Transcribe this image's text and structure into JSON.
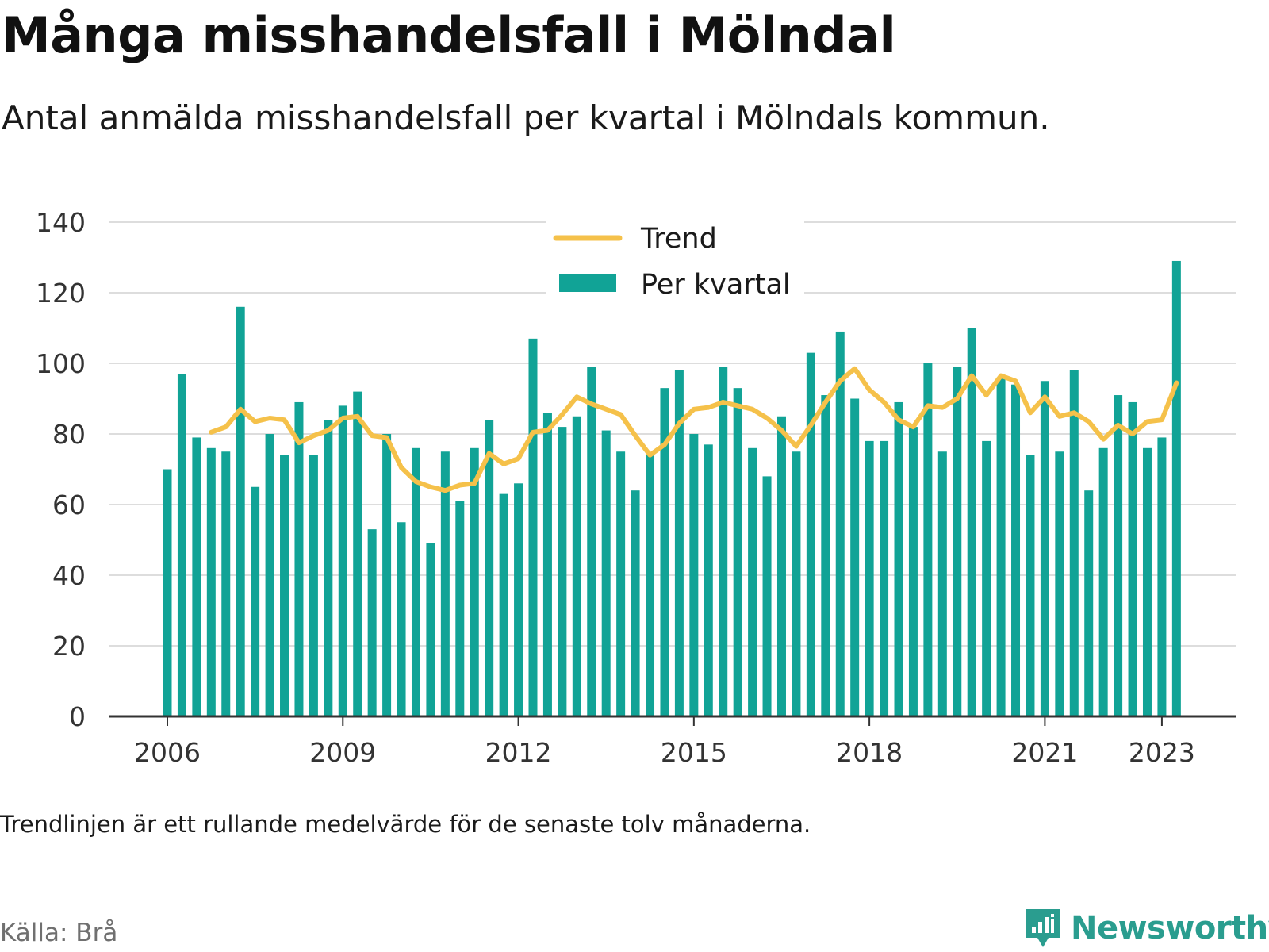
{
  "header": {
    "title": "Många misshandelsfall i Mölndal",
    "subtitle": "Antal anmälda misshandelsfall per kvartal i Mölndals kommun."
  },
  "footer": {
    "note": "Trendlinjen är ett rullande medelvärde för de senaste tolv månaderna.",
    "source": "Källa: Brå",
    "brand": "Newsworthy"
  },
  "colors": {
    "bar": "#11a396",
    "trend": "#f5c14a",
    "grid": "#dddddd",
    "axis": "#333333",
    "brand": "#2a9d8f"
  },
  "chart_data": {
    "type": "bar",
    "x_start": "2006-Q1",
    "x_ticks": [
      "2006",
      "2009",
      "2012",
      "2015",
      "2018",
      "2021",
      "2023"
    ],
    "y_ticks": [
      0,
      20,
      40,
      60,
      80,
      100,
      120,
      140
    ],
    "ylim": [
      0,
      140
    ],
    "grid": true,
    "legend": {
      "placement": "top-center",
      "items": [
        "Trend",
        "Per kvartal"
      ]
    },
    "series": [
      {
        "name": "Per kvartal",
        "type": "bar",
        "values": [
          70,
          97,
          79,
          76,
          75,
          116,
          65,
          80,
          74,
          89,
          74,
          84,
          88,
          92,
          53,
          80,
          55,
          76,
          49,
          75,
          61,
          76,
          84,
          63,
          66,
          107,
          86,
          82,
          85,
          99,
          81,
          75,
          64,
          74,
          93,
          98,
          80,
          77,
          99,
          93,
          76,
          68,
          85,
          75,
          103,
          91,
          109,
          90,
          78,
          78,
          89,
          82,
          100,
          75,
          99,
          110,
          78,
          96,
          94,
          74,
          95,
          75,
          98,
          64,
          76,
          91,
          89,
          76,
          79,
          129
        ]
      },
      {
        "name": "Trend",
        "type": "line",
        "values": [
          null,
          null,
          null,
          80.5,
          82,
          87,
          83.5,
          84.5,
          84,
          77.5,
          79.5,
          81,
          84.5,
          85,
          79.5,
          79,
          70.5,
          66.5,
          65,
          64,
          65.5,
          66,
          74.5,
          71.5,
          73,
          80.5,
          81,
          85.5,
          90.5,
          88.5,
          87,
          85.5,
          79.5,
          74,
          77,
          83,
          87,
          87.5,
          89,
          88,
          87,
          84.5,
          81,
          76.5,
          82.5,
          89,
          95,
          98.5,
          92.5,
          89,
          84,
          82,
          88,
          87.5,
          90,
          96.5,
          91,
          96.5,
          95,
          86,
          90.5,
          85,
          86,
          83.5,
          78.5,
          82.5,
          80,
          83.5,
          84,
          94.5
        ]
      }
    ]
  }
}
